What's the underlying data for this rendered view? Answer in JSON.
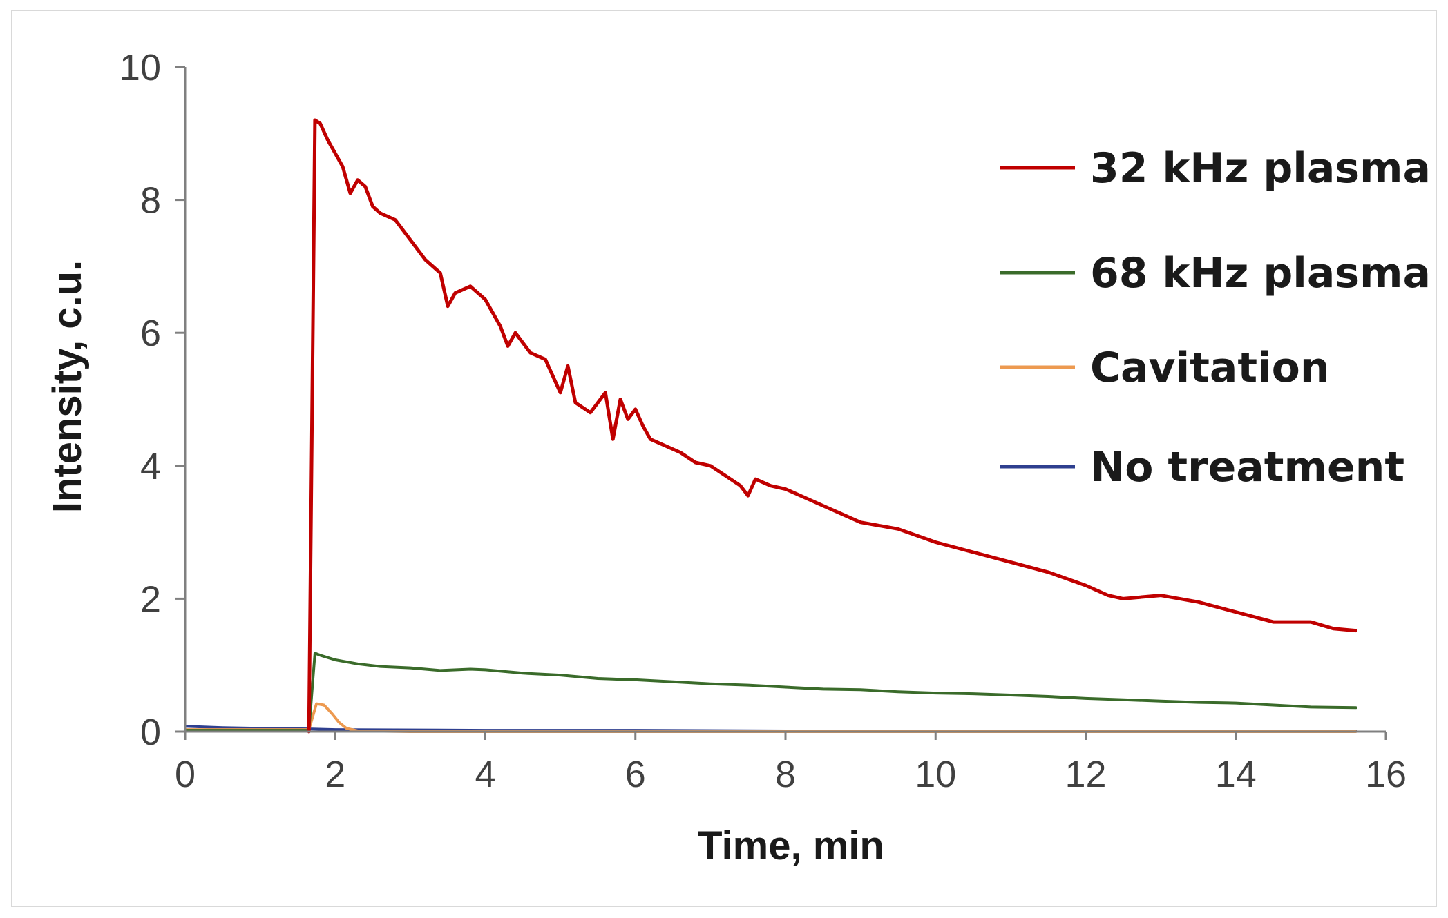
{
  "chart_data": {
    "type": "line",
    "xlabel": "Time, min",
    "ylabel": "Intensity, c.u.",
    "xlim": [
      0,
      16
    ],
    "ylim": [
      0,
      10
    ],
    "xticks": [
      "0",
      "2",
      "4",
      "6",
      "8",
      "10",
      "12",
      "14",
      "16"
    ],
    "yticks": [
      "0",
      "2",
      "4",
      "6",
      "8",
      "10"
    ],
    "grid": false,
    "legend_position": "right",
    "series": [
      {
        "name": "32 kHz plasma",
        "color": "#c00000",
        "x": [
          1.65,
          1.73,
          1.8,
          1.9,
          2.0,
          2.1,
          2.2,
          2.3,
          2.4,
          2.5,
          2.6,
          2.8,
          3.0,
          3.2,
          3.4,
          3.5,
          3.6,
          3.8,
          4.0,
          4.2,
          4.3,
          4.4,
          4.6,
          4.8,
          5.0,
          5.1,
          5.2,
          5.4,
          5.6,
          5.7,
          5.8,
          5.9,
          6.0,
          6.1,
          6.2,
          6.4,
          6.6,
          6.8,
          7.0,
          7.2,
          7.4,
          7.5,
          7.6,
          7.8,
          8.0,
          8.5,
          9.0,
          9.5,
          10.0,
          10.5,
          11.0,
          11.5,
          12.0,
          12.3,
          12.5,
          13.0,
          13.5,
          14.0,
          14.5,
          15.0,
          15.3,
          15.6
        ],
        "y": [
          0.0,
          9.2,
          9.15,
          8.9,
          8.7,
          8.5,
          8.1,
          8.3,
          8.2,
          7.9,
          7.8,
          7.7,
          7.4,
          7.1,
          6.9,
          6.4,
          6.6,
          6.7,
          6.5,
          6.1,
          5.8,
          6.0,
          5.7,
          5.6,
          5.1,
          5.5,
          4.95,
          4.8,
          5.1,
          4.4,
          5.0,
          4.7,
          4.85,
          4.6,
          4.4,
          4.3,
          4.2,
          4.05,
          4.0,
          3.85,
          3.7,
          3.55,
          3.8,
          3.7,
          3.65,
          3.4,
          3.15,
          3.05,
          2.85,
          2.7,
          2.55,
          2.4,
          2.2,
          2.05,
          2.0,
          2.05,
          1.95,
          1.8,
          1.65,
          1.65,
          1.55,
          1.52
        ]
      },
      {
        "name": "68 kHz plasma",
        "color": "#3a6b2a",
        "x": [
          0,
          1.65,
          1.73,
          1.8,
          2.0,
          2.3,
          2.6,
          3.0,
          3.4,
          3.8,
          4.0,
          4.5,
          5.0,
          5.5,
          6.0,
          6.5,
          7.0,
          7.5,
          8.0,
          8.5,
          9.0,
          9.5,
          10.0,
          10.5,
          11.0,
          11.5,
          12.0,
          12.5,
          13.0,
          13.5,
          14.0,
          14.5,
          15.0,
          15.6
        ],
        "y": [
          0.02,
          0.02,
          1.18,
          1.15,
          1.08,
          1.02,
          0.98,
          0.96,
          0.92,
          0.94,
          0.93,
          0.88,
          0.85,
          0.8,
          0.78,
          0.75,
          0.72,
          0.7,
          0.67,
          0.64,
          0.63,
          0.6,
          0.58,
          0.57,
          0.55,
          0.53,
          0.5,
          0.48,
          0.46,
          0.44,
          0.43,
          0.4,
          0.37,
          0.36
        ]
      },
      {
        "name": "Cavitation",
        "color": "#ed9a50",
        "x": [
          0,
          1.65,
          1.75,
          1.85,
          1.95,
          2.05,
          2.15,
          2.3,
          3.0,
          6.0,
          10.0,
          15.6
        ],
        "y": [
          0.03,
          0.03,
          0.42,
          0.4,
          0.28,
          0.14,
          0.05,
          0.01,
          0.0,
          0.0,
          0.0,
          0.0
        ]
      },
      {
        "name": "No treatment",
        "color": "#2e3f8f",
        "x": [
          0,
          0.5,
          1.0,
          1.65,
          2.0,
          4.0,
          6.0,
          8.0,
          10.0,
          12.0,
          14.0,
          15.6
        ],
        "y": [
          0.08,
          0.06,
          0.05,
          0.04,
          0.03,
          0.02,
          0.02,
          0.01,
          0.01,
          0.01,
          0.01,
          0.01
        ]
      }
    ]
  }
}
